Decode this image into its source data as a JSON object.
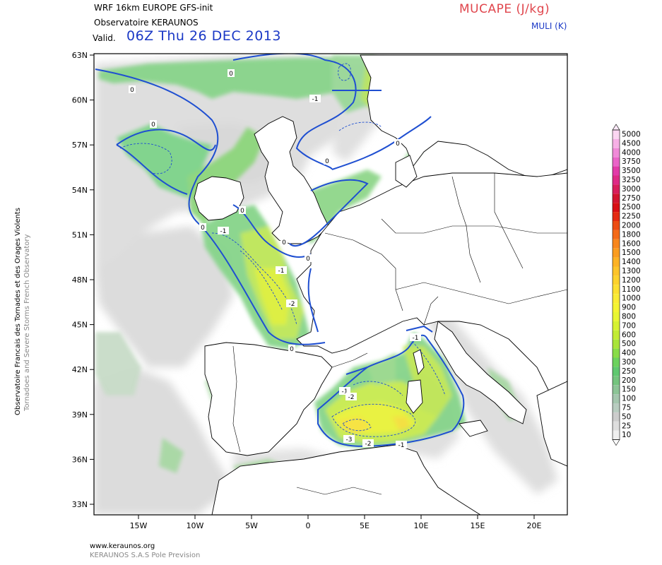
{
  "header": {
    "model_line": "WRF 16km EUROPE   GFS-init",
    "org_line": "Observatoire KERAUNOS",
    "valid_label": "Valid.",
    "valid_date": "06Z Thu 26 DEC 2013",
    "field_title": "MUCAPE (J/kg)",
    "field_subtitle": "MULI (K)"
  },
  "side_text": {
    "line1": "Observatoire Francais des Tornades et des Orages Violents",
    "line2": "Tornadoes and Severe Storms French Observatory"
  },
  "footer": {
    "website": "www.keraunos.org",
    "company": "KERAUNOS S.A.S Pole Prevision"
  },
  "axes": {
    "lat_labels": [
      "63N",
      "60N",
      "57N",
      "54N",
      "51N",
      "48N",
      "45N",
      "42N",
      "39N",
      "36N",
      "33N"
    ],
    "lon_labels": [
      "15W",
      "10W",
      "5W",
      "0",
      "5E",
      "10E",
      "15E",
      "20E"
    ]
  },
  "colorbar": {
    "levels": [
      "5000",
      "4500",
      "4000",
      "3750",
      "3500",
      "3250",
      "3000",
      "2750",
      "2500",
      "2250",
      "2000",
      "1800",
      "1600",
      "1500",
      "1400",
      "1300",
      "1200",
      "1100",
      "1000",
      "900",
      "800",
      "700",
      "600",
      "500",
      "400",
      "300",
      "250",
      "200",
      "150",
      "100",
      "75",
      "50",
      "25",
      "10"
    ],
    "colors": [
      "#fbd6f2",
      "#f7b0e6",
      "#f08ad8",
      "#ea64c8",
      "#e23aa8",
      "#de2a86",
      "#d81e5c",
      "#d21430",
      "#d80e14",
      "#e42a12",
      "#ec4c14",
      "#f46a18",
      "#f8861c",
      "#fa9c20",
      "#fcb224",
      "#fcc42a",
      "#fcd22c",
      "#fce030",
      "#faec34",
      "#f4f432",
      "#e8f632",
      "#d6f232",
      "#c2ec34",
      "#a8e43a",
      "#88dc48",
      "#6cd25e",
      "#60c870",
      "#74c47e",
      "#8cc496",
      "#a4c6ae",
      "#b8ccc0",
      "#cccccc",
      "#dedede",
      "#efefef"
    ]
  },
  "contour_labels": [
    "0",
    "0",
    "0",
    "0",
    "0",
    "0",
    "0",
    "0",
    "0",
    "0",
    "-1",
    "-1",
    "-1",
    "-1",
    "-1",
    "-2",
    "-2",
    "-3",
    "-2",
    "-1"
  ]
}
